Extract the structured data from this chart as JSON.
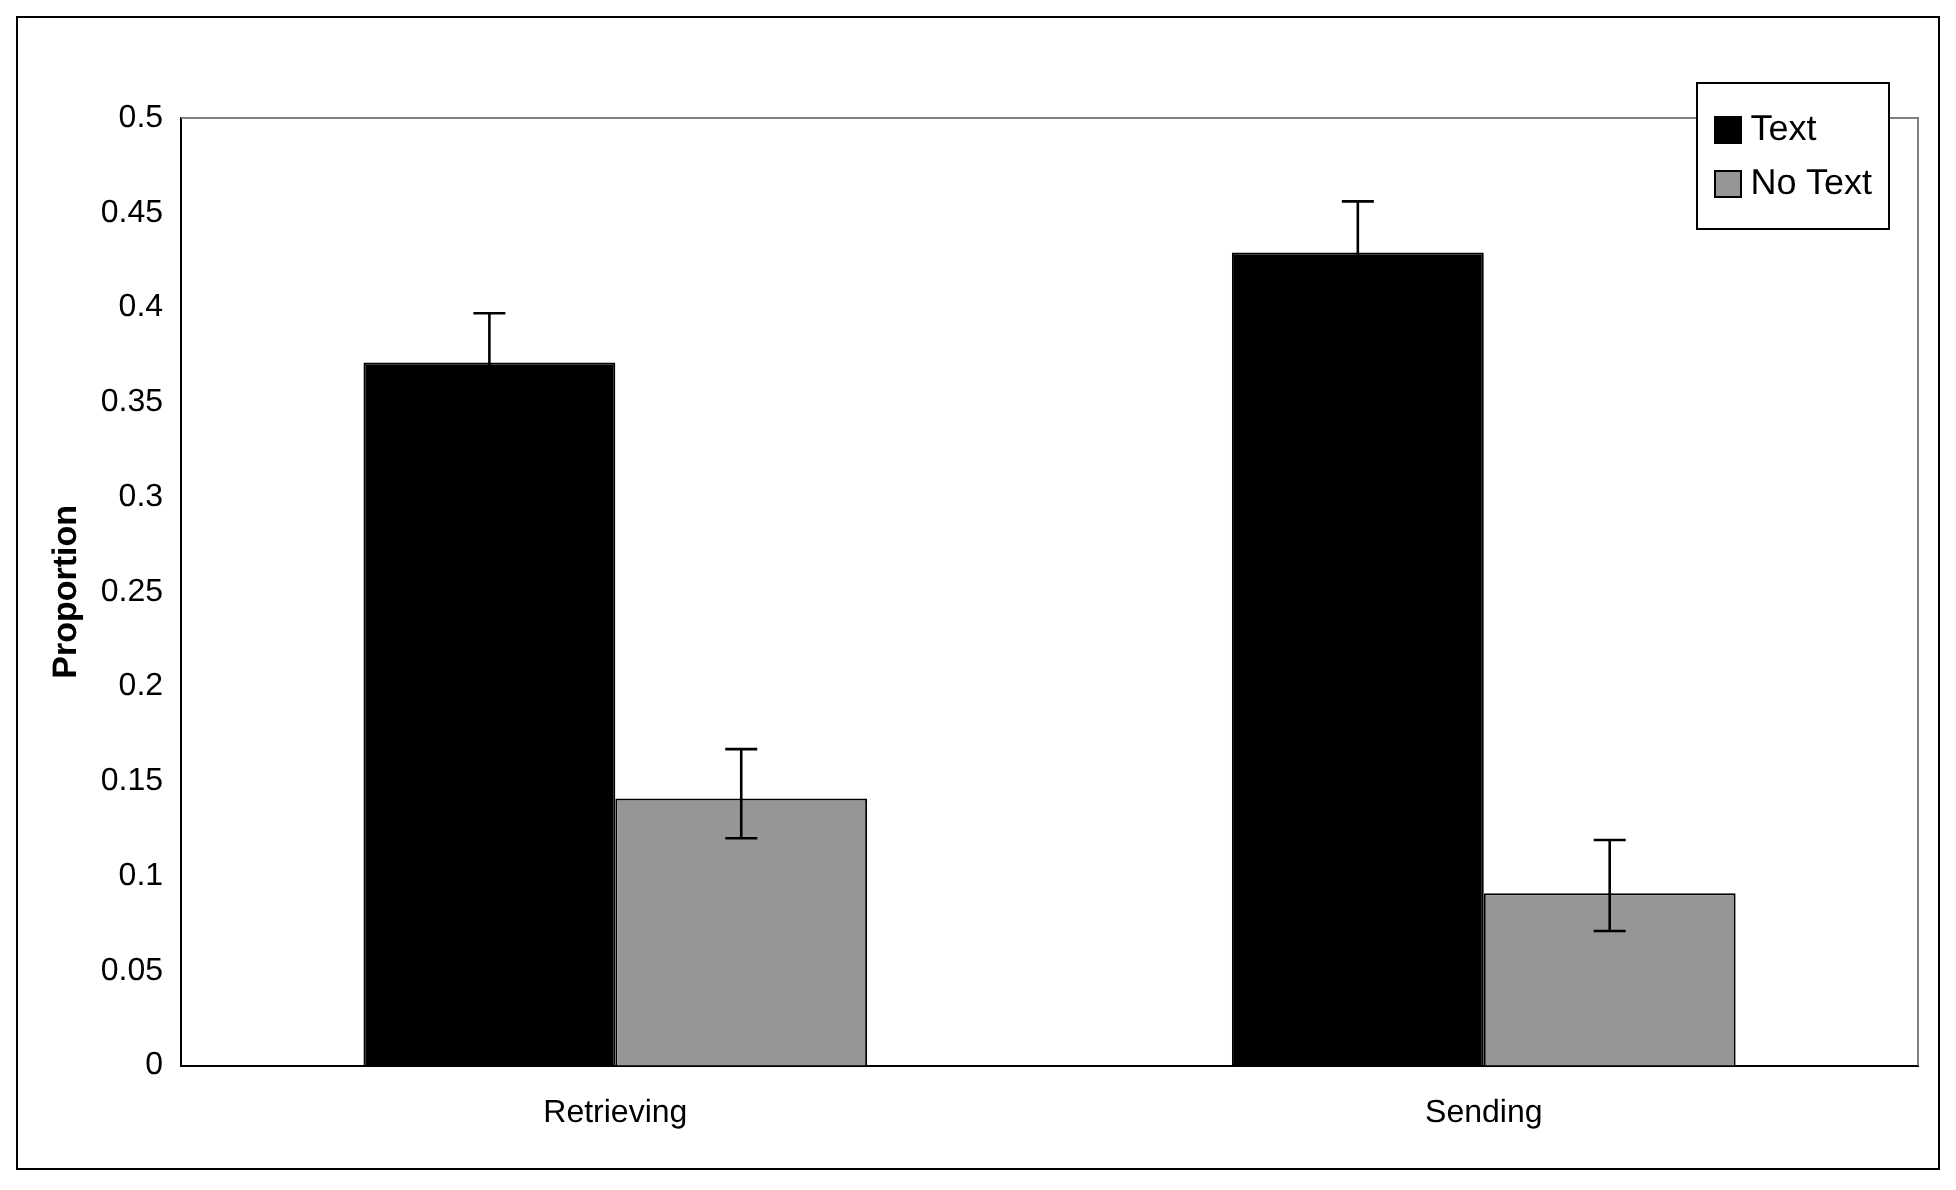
{
  "chart_data": {
    "type": "bar",
    "ylabel": "Proportion",
    "categories": [
      "Retrieving",
      "Sending"
    ],
    "series": [
      {
        "name": "Text",
        "color": "#000000",
        "values": [
          0.371,
          0.429
        ],
        "errors": [
          0.026,
          0.027
        ]
      },
      {
        "name": "No Text",
        "color": "#969696",
        "values": [
          0.141,
          0.091
        ],
        "errors": [
          [
            0.12,
            0.167
          ],
          [
            0.071,
            0.119
          ]
        ]
      }
    ],
    "ylim": [
      0,
      0.5
    ],
    "yticks": [
      0,
      0.05,
      0.1,
      0.15,
      0.2,
      0.25,
      0.3,
      0.35,
      0.4,
      0.45,
      0.5
    ],
    "legend": "top right"
  }
}
